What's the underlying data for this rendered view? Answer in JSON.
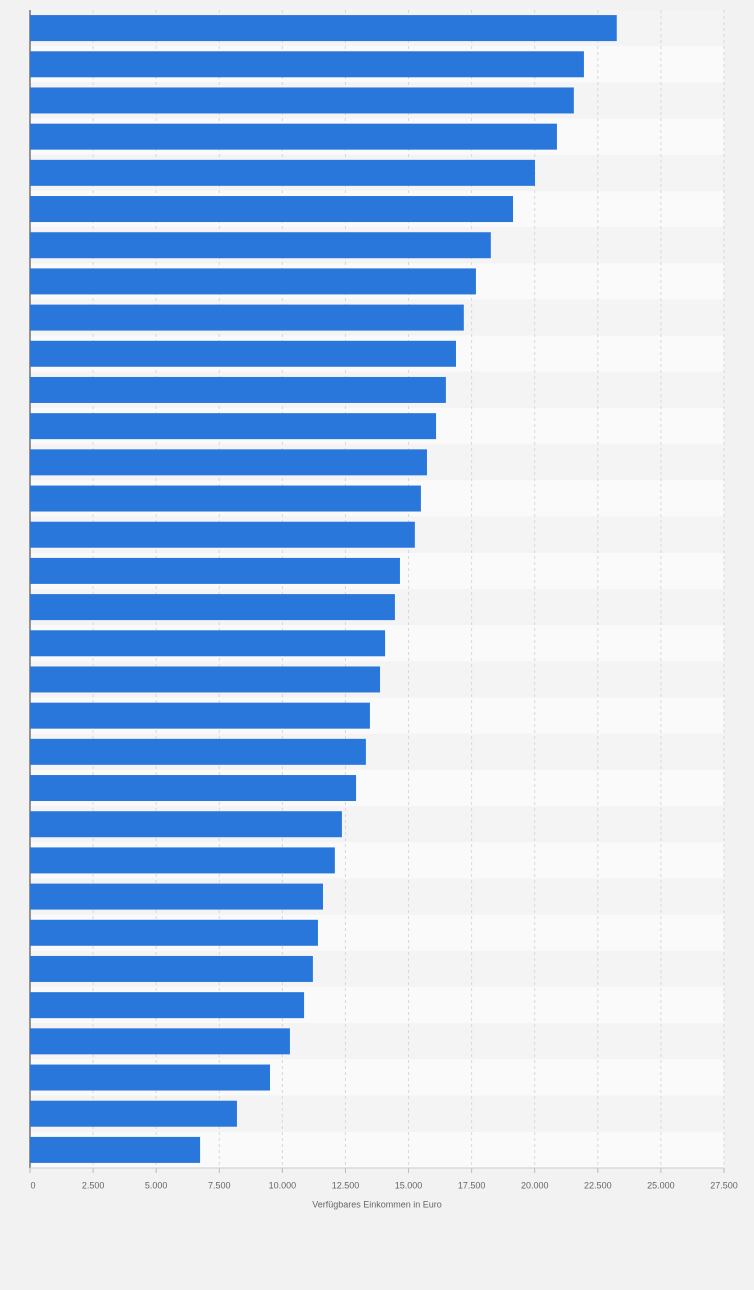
{
  "chart_data": {
    "type": "barh",
    "xlabel": "Verfügbares Einkommen in Euro",
    "categories": [
      null,
      null,
      null,
      null,
      null,
      null,
      null,
      null,
      null,
      null,
      null,
      null,
      null,
      null,
      null,
      null,
      null,
      null,
      null,
      null,
      null,
      null,
      null,
      null,
      null,
      null,
      null,
      null,
      null,
      null,
      null,
      null
    ],
    "values": [
      23250,
      21950,
      21550,
      20880,
      20010,
      19140,
      18260,
      17670,
      17190,
      16880,
      16480,
      16090,
      15730,
      15490,
      15250,
      14660,
      14460,
      14070,
      13870,
      13470,
      13310,
      12920,
      12360,
      12080,
      11610,
      11410,
      11210,
      10860,
      10300,
      9510,
      8200,
      6740
    ],
    "color": "#2a77db",
    "xlim": [
      0,
      27500
    ],
    "xticks": [
      0,
      {
        "value": 2500,
        "label": "2.500"
      },
      {
        "value": 5000,
        "label": "5.000"
      },
      {
        "value": 7500,
        "label": "7.500"
      },
      {
        "value": 10000,
        "label": "10.000"
      },
      {
        "value": 12500,
        "label": "12.500"
      },
      {
        "value": 15000,
        "label": "15.000"
      },
      {
        "value": 17500,
        "label": "17.500"
      },
      {
        "value": 20000,
        "label": "20.000"
      },
      {
        "value": 22500,
        "label": "22.500"
      },
      {
        "value": 25000,
        "label": "25.000"
      },
      {
        "value": 27500,
        "label": "27.500"
      }
    ],
    "grid": true
  }
}
